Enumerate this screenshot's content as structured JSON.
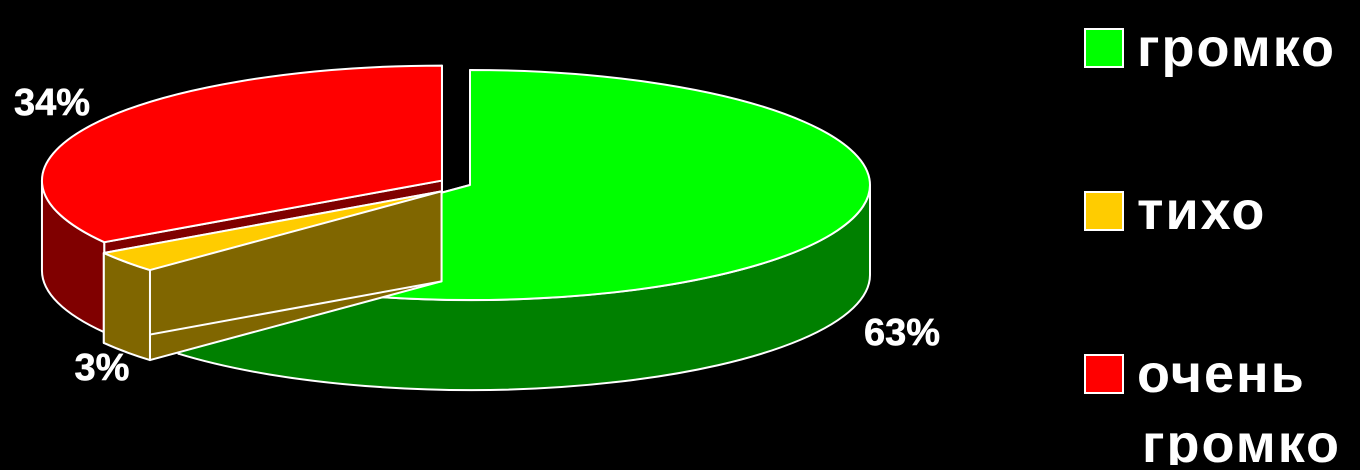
{
  "chart_data": {
    "type": "pie",
    "style": "3d-exploded",
    "slices": [
      {
        "label": "громко",
        "value": 63,
        "value_label": "63%",
        "color": "#00ff00",
        "side_color": "#008000"
      },
      {
        "label": "тихо",
        "value": 3,
        "value_label": "3%",
        "color": "#ffcc00",
        "side_color": "#806600"
      },
      {
        "label": "очень громко",
        "value": 34,
        "value_label": "34%",
        "color": "#ff0000",
        "side_color": "#800000"
      }
    ],
    "legend": {
      "placement": "right",
      "items": [
        {
          "lines": [
            "громко"
          ],
          "color": "#00ff00"
        },
        {
          "lines": [
            "тихо"
          ],
          "color": "#ffcc00"
        },
        {
          "lines": [
            "очень",
            "громко"
          ],
          "color": "#ff0000"
        }
      ]
    },
    "background": "#000000",
    "label_color": "#ffffff"
  }
}
